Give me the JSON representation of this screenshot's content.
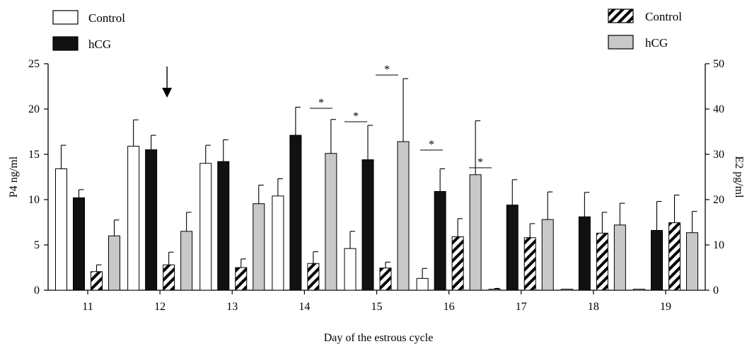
{
  "chart_data": {
    "type": "bar",
    "xlabel": "Day of the estrous cycle",
    "ylabel_left": "P4 ng/ml",
    "ylabel_right": "E2 pg/ml",
    "ylim_left": [
      0,
      25
    ],
    "ylim_right": [
      0,
      50
    ],
    "yticks_left": [
      "0",
      "5",
      "10",
      "15",
      "20",
      "25"
    ],
    "yticks_right": [
      "0",
      "10",
      "20",
      "30",
      "40",
      "50"
    ],
    "categories": [
      "11",
      "12",
      "13",
      "14",
      "15",
      "16",
      "17",
      "18",
      "19"
    ],
    "series": [
      {
        "name": "Control",
        "axis": "left",
        "style": "white",
        "values": [
          13.4,
          15.9,
          14.0,
          10.4,
          4.6,
          1.3,
          0.1,
          0.0,
          0.0
        ],
        "errors": [
          2.6,
          2.9,
          2.0,
          1.9,
          1.9,
          1.1,
          0.1,
          0,
          0
        ]
      },
      {
        "name": "hCG",
        "axis": "left",
        "style": "black",
        "values": [
          10.2,
          15.5,
          14.2,
          17.1,
          14.4,
          10.9,
          9.4,
          8.1,
          6.6
        ],
        "errors": [
          0.9,
          1.6,
          2.4,
          3.1,
          3.8,
          2.5,
          2.8,
          2.7,
          3.2
        ]
      },
      {
        "name": "Control",
        "axis": "right",
        "style": "hatched",
        "values": [
          4.1,
          5.6,
          5.0,
          5.9,
          4.9,
          11.8,
          11.6,
          12.6,
          14.9
        ],
        "errors": [
          1.5,
          2.8,
          1.9,
          2.6,
          1.3,
          4.0,
          3.1,
          4.6,
          6.1
        ]
      },
      {
        "name": "hCG",
        "axis": "right",
        "style": "grey",
        "values": [
          12.0,
          13.0,
          19.1,
          30.2,
          32.8,
          25.5,
          15.6,
          14.4,
          12.7
        ],
        "errors": [
          3.5,
          4.2,
          4.1,
          7.5,
          13.9,
          11.9,
          6.1,
          4.8,
          4.7
        ]
      }
    ],
    "significance": [
      {
        "category": "14",
        "label": "*"
      },
      {
        "category": "15",
        "label": "*"
      },
      {
        "category": "15",
        "label": "*"
      },
      {
        "category": "16",
        "label": "*"
      },
      {
        "category": "17",
        "label": "*"
      }
    ],
    "arrow_category": "12",
    "legend": [
      {
        "label": "Control",
        "style": "white",
        "position": "top-left"
      },
      {
        "label": "hCG",
        "style": "black",
        "position": "top-left"
      },
      {
        "label": "Control",
        "style": "hatched",
        "position": "top-right"
      },
      {
        "label": "hCG",
        "style": "grey",
        "position": "top-right"
      }
    ],
    "colors": {
      "white": "#ffffff",
      "black": "#111111",
      "grey": "#c8c8c8",
      "stroke": "#000000"
    }
  }
}
